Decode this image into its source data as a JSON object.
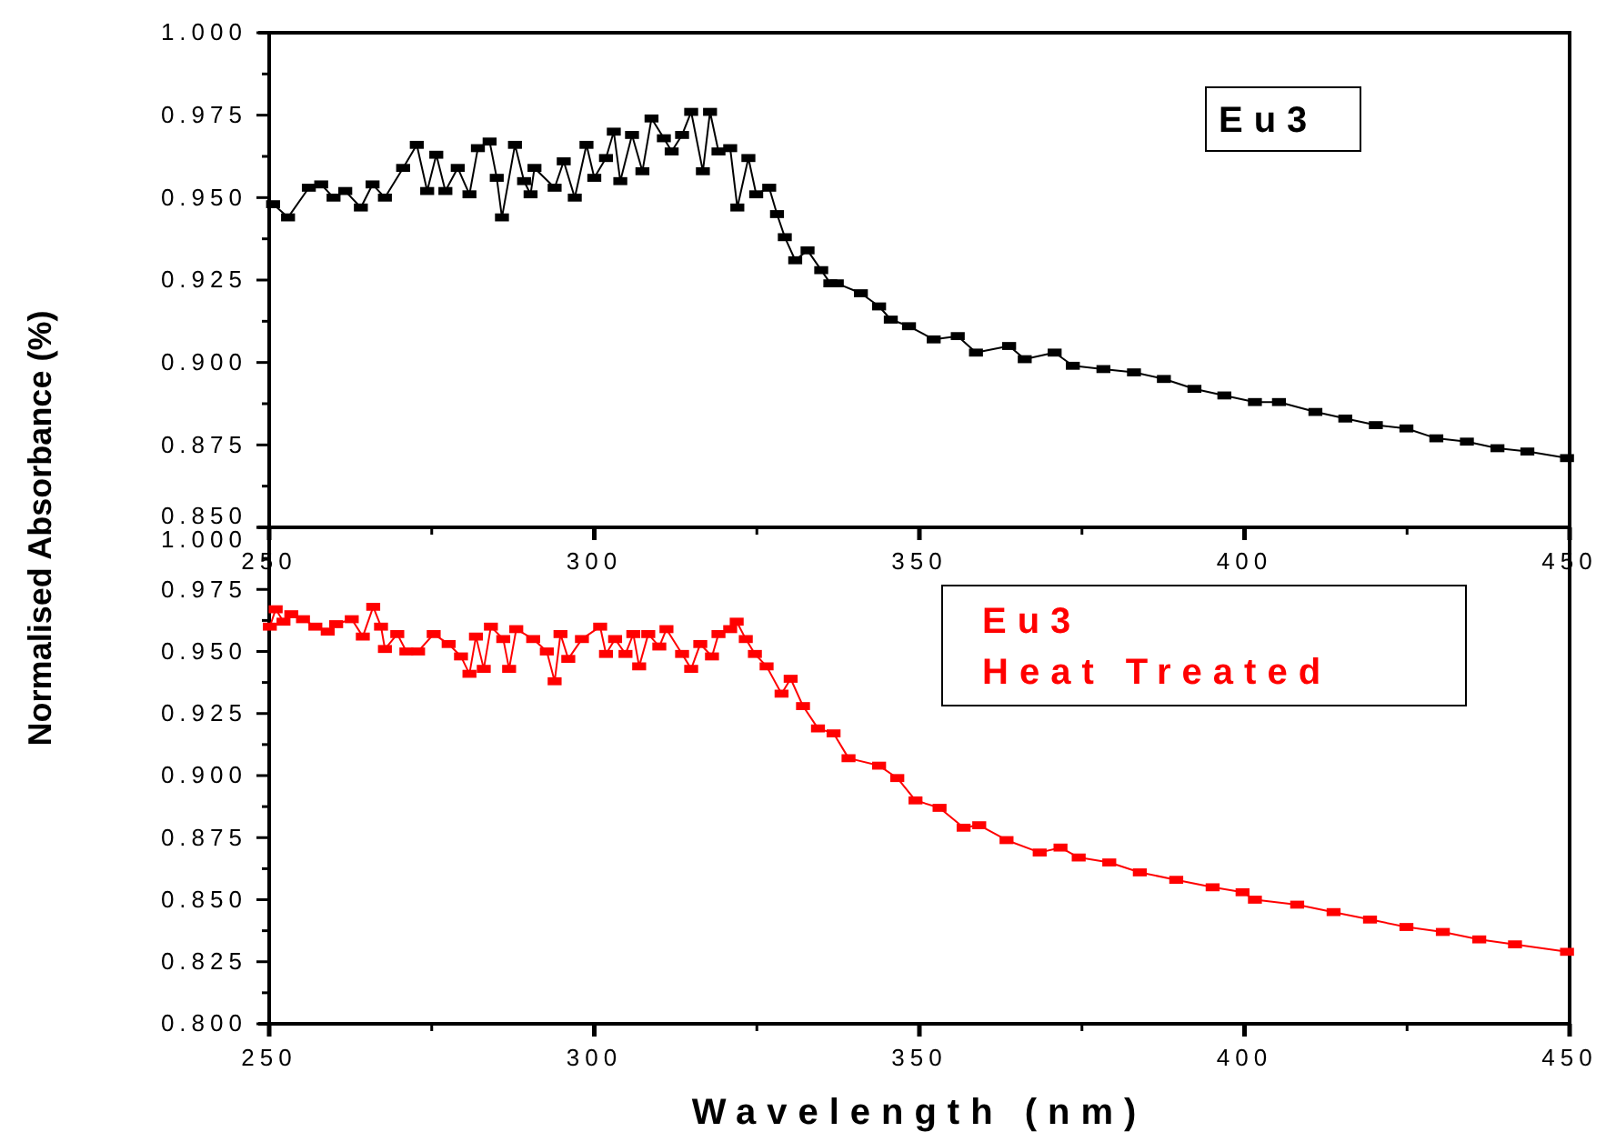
{
  "chart_data": [
    {
      "type": "line",
      "marker": "square",
      "line_style": "solid",
      "xlim": [
        250,
        450
      ],
      "xticks": [
        250,
        {
          "value": 275,
          "label": null
        },
        300,
        {
          "value": 325,
          "label": null
        },
        350,
        {
          "value": 375,
          "label": null
        },
        400,
        {
          "value": 425,
          "label": null
        },
        450
      ],
      "ylim": [
        0.85,
        1.0
      ],
      "yticks": [
        {
          "value": 0.85,
          "label": "0.850"
        },
        {
          "value": 0.8625,
          "label": null
        },
        {
          "value": 0.875,
          "label": "0.875"
        },
        {
          "value": 0.8875,
          "label": null
        },
        {
          "value": 0.9,
          "label": "0.900"
        },
        {
          "value": 0.9125,
          "label": null
        },
        {
          "value": 0.925,
          "label": "0.925"
        },
        {
          "value": 0.9375,
          "label": null
        },
        {
          "value": 0.95,
          "label": "0.950"
        },
        {
          "value": 0.9625,
          "label": null
        },
        {
          "value": 0.975,
          "label": "0.975"
        },
        {
          "value": 0.9875,
          "label": null
        },
        {
          "value": 1.0,
          "label": "1.000"
        }
      ],
      "annotations": [
        "Eu3"
      ],
      "series": [
        {
          "color": "#000000",
          "x": [
            250.6,
            252.9,
            256.1,
            258,
            259.9,
            261.7,
            264.1,
            265.9,
            267.8,
            270.6,
            272.7,
            274.3,
            275.7,
            277.1,
            279,
            280.8,
            282.1,
            283.9,
            285,
            285.8,
            287.8,
            289.2,
            290.2,
            290.8,
            293.9,
            295.3,
            297,
            298.8,
            300,
            301.8,
            303,
            304,
            305.8,
            307.4,
            308.8,
            310.7,
            311.9,
            313.5,
            314.9,
            316.7,
            317.8,
            319.1,
            320.9,
            322,
            323.7,
            324.9,
            326.9,
            328.1,
            329.3,
            330.9,
            332.8,
            334.9,
            336.3,
            337.3,
            341,
            343.8,
            345.6,
            348.4,
            352.2,
            355.9,
            358.7,
            363.8,
            366.2,
            370.8,
            373.6,
            378.3,
            383,
            387.6,
            392.3,
            396.9,
            401.6,
            405.3,
            410.9,
            415.5,
            420.2,
            424.9,
            429.5,
            434.2,
            438.9,
            443.5,
            449.6
          ],
          "values": [
            0.948,
            0.944,
            0.953,
            0.954,
            0.95,
            0.952,
            0.947,
            0.954,
            0.95,
            0.959,
            0.966,
            0.952,
            0.963,
            0.952,
            0.959,
            0.951,
            0.965,
            0.967,
            0.956,
            0.944,
            0.966,
            0.955,
            0.951,
            0.959,
            0.953,
            0.961,
            0.95,
            0.966,
            0.956,
            0.962,
            0.97,
            0.955,
            0.969,
            0.958,
            0.974,
            0.968,
            0.964,
            0.969,
            0.976,
            0.958,
            0.976,
            0.964,
            0.965,
            0.947,
            0.962,
            0.951,
            0.953,
            0.945,
            0.938,
            0.931,
            0.934,
            0.928,
            0.924,
            0.924,
            0.921,
            0.917,
            0.913,
            0.911,
            0.907,
            0.908,
            0.903,
            0.905,
            0.901,
            0.903,
            0.899,
            0.898,
            0.897,
            0.895,
            0.892,
            0.89,
            0.888,
            0.888,
            0.885,
            0.883,
            0.881,
            0.88,
            0.877,
            0.876,
            0.874,
            0.873,
            0.871
          ]
        }
      ]
    },
    {
      "type": "line",
      "marker": "square",
      "line_style": "solid",
      "xlim": [
        250,
        450
      ],
      "xticks": [
        250,
        {
          "value": 275,
          "label": null
        },
        300,
        {
          "value": 325,
          "label": null
        },
        350,
        {
          "value": 375,
          "label": null
        },
        400,
        {
          "value": 425,
          "label": null
        },
        450
      ],
      "ylim": [
        0.8,
        1.0
      ],
      "yticks": [
        {
          "value": 0.8,
          "label": "0.800"
        },
        {
          "value": 0.8125,
          "label": null
        },
        {
          "value": 0.825,
          "label": "0.825"
        },
        {
          "value": 0.8375,
          "label": null
        },
        {
          "value": 0.85,
          "label": "0.850"
        },
        {
          "value": 0.8625,
          "label": null
        },
        {
          "value": 0.875,
          "label": "0.875"
        },
        {
          "value": 0.8875,
          "label": null
        },
        {
          "value": 0.9,
          "label": "0.900"
        },
        {
          "value": 0.9125,
          "label": null
        },
        {
          "value": 0.925,
          "label": "0.925"
        },
        {
          "value": 0.9375,
          "label": null
        },
        {
          "value": 0.95,
          "label": "0.950"
        },
        {
          "value": 0.9625,
          "label": null
        },
        {
          "value": 0.975,
          "label": "0.975"
        },
        {
          "value": 0.9875,
          "label": null
        },
        {
          "value": 1.0,
          "label": "1.000"
        }
      ],
      "xlabel": "Wavelength (nm)",
      "ylabel": "Normalised Absorbance (%)",
      "annotations": [
        "Eu3",
        "Heat Treated"
      ],
      "series": [
        {
          "color": "#ff0000",
          "x": [
            250.1,
            251,
            252.2,
            253.4,
            255.2,
            257.1,
            259,
            260.3,
            262.7,
            264.4,
            266,
            267.2,
            267.8,
            269.7,
            271.1,
            272.9,
            275.3,
            277.6,
            279.5,
            280.8,
            281.8,
            283,
            284.1,
            286,
            286.9,
            288,
            290.6,
            292.7,
            293.9,
            294.8,
            296,
            298.1,
            300.9,
            301.8,
            303.2,
            304.8,
            306,
            306.9,
            308.3,
            310,
            311.1,
            313.5,
            314.9,
            316.3,
            318.1,
            319.1,
            320.9,
            321.9,
            323.3,
            324.7,
            326.5,
            328.8,
            330.2,
            332.1,
            334.4,
            336.8,
            339.1,
            343.8,
            346.6,
            349.4,
            353.1,
            356.8,
            359.2,
            363.4,
            368.5,
            371.7,
            374.5,
            379.2,
            383.9,
            389.5,
            395.1,
            399.7,
            401.6,
            408.1,
            413.7,
            419.3,
            424.9,
            430.5,
            436.1,
            441.6,
            449.6
          ],
          "values": [
            0.96,
            0.967,
            0.962,
            0.965,
            0.963,
            0.96,
            0.958,
            0.961,
            0.963,
            0.956,
            0.968,
            0.96,
            0.951,
            0.957,
            0.95,
            0.95,
            0.957,
            0.953,
            0.948,
            0.941,
            0.956,
            0.943,
            0.96,
            0.955,
            0.943,
            0.959,
            0.955,
            0.95,
            0.938,
            0.957,
            0.947,
            0.955,
            0.96,
            0.949,
            0.955,
            0.949,
            0.957,
            0.944,
            0.957,
            0.952,
            0.959,
            0.949,
            0.943,
            0.953,
            0.948,
            0.957,
            0.959,
            0.962,
            0.955,
            0.949,
            0.944,
            0.933,
            0.939,
            0.928,
            0.919,
            0.917,
            0.907,
            0.904,
            0.899,
            0.89,
            0.887,
            0.879,
            0.88,
            0.874,
            0.869,
            0.871,
            0.867,
            0.865,
            0.861,
            0.858,
            0.855,
            0.853,
            0.85,
            0.848,
            0.845,
            0.842,
            0.839,
            0.837,
            0.834,
            0.832,
            0.829
          ]
        }
      ]
    }
  ]
}
